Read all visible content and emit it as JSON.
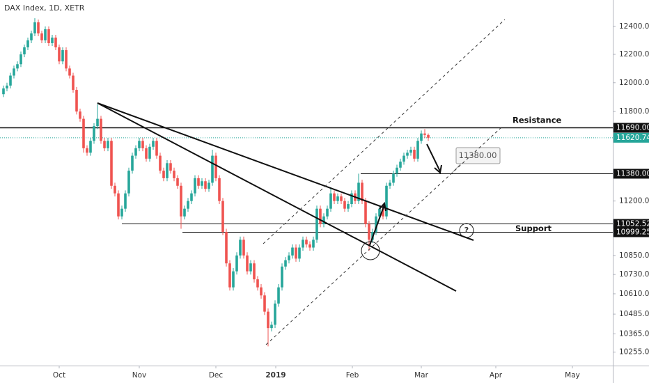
{
  "chart_data": {
    "type": "candlestick",
    "title": "DAX Index, 1D, XETR",
    "log_scale": true,
    "ylim": [
      10175,
      12593
    ],
    "yticks": [
      {
        "value": 12400,
        "label": "12400.00"
      },
      {
        "value": 12200,
        "label": "12200.00"
      },
      {
        "value": 12000,
        "label": "12000.00"
      },
      {
        "value": 11800,
        "label": "11800.00"
      },
      {
        "value": 11200,
        "label": "11200.00"
      },
      {
        "value": 10850,
        "label": "10850.00"
      },
      {
        "value": 10730,
        "label": "10730.00"
      },
      {
        "value": 10610,
        "label": "10610.00"
      },
      {
        "value": 10485,
        "label": "10485.00"
      },
      {
        "value": 10365,
        "label": "10365.00"
      },
      {
        "value": 10255,
        "label": "10255.00"
      }
    ],
    "xtick_labels": [
      "Oct",
      "Nov",
      "Dec",
      "2019",
      "Feb",
      "Mar",
      "Apr",
      "May"
    ],
    "up_color": "#26a69a",
    "down_color": "#ef5350",
    "open": [
      11920,
      11960,
      11980,
      12050,
      12100,
      12130,
      12200,
      12250,
      12300,
      12350,
      12430,
      12350,
      12300,
      12380,
      12280,
      12320,
      12250,
      12150,
      12230,
      12100,
      12050,
      11950,
      11800,
      11750,
      11550,
      11520,
      11600,
      11700,
      11750,
      11600,
      11550,
      11600,
      11300,
      11250,
      11100,
      11150,
      11250,
      11400,
      11500,
      11550,
      11600,
      11550,
      11480,
      11560,
      11600,
      11500,
      11400,
      11350,
      11450,
      11400,
      11350,
      11300,
      11100,
      11150,
      11200,
      11250,
      11350,
      11300,
      11330,
      11280,
      11320,
      11500,
      11350,
      11200,
      11000,
      10800,
      10650,
      10750,
      10850,
      10950,
      10850,
      10750,
      10800,
      10700,
      10650,
      10600,
      10500,
      10400,
      10420,
      10550,
      10650,
      10780,
      10820,
      10850,
      10900,
      10830,
      10900,
      10950,
      10920,
      10900,
      10950,
      11150,
      11050,
      11100,
      11150,
      11250,
      11200,
      11230,
      11200,
      11150,
      11180,
      11250,
      11200,
      11320,
      11200,
      11050,
      10950,
      11000,
      11100,
      11150,
      11100,
      11300,
      11320,
      11380,
      11420,
      11460,
      11500,
      11520,
      11540,
      11480,
      11600,
      11650,
      11640
    ],
    "high": [
      11980,
      12000,
      12070,
      12120,
      12150,
      12220,
      12270,
      12320,
      12370,
      12460,
      12450,
      12370,
      12400,
      12400,
      12340,
      12340,
      12270,
      12250,
      12250,
      12120,
      12070,
      11970,
      11820,
      11770,
      11570,
      11620,
      11720,
      11850,
      11770,
      11620,
      11620,
      11620,
      11320,
      11270,
      11170,
      11270,
      11420,
      11520,
      11570,
      11620,
      11620,
      11570,
      11580,
      11620,
      11620,
      11520,
      11420,
      11470,
      11470,
      11420,
      11370,
      11320,
      11170,
      11220,
      11270,
      11370,
      11370,
      11350,
      11350,
      11340,
      11540,
      11520,
      11370,
      11220,
      11020,
      10820,
      10770,
      10870,
      10970,
      10970,
      10870,
      10820,
      10820,
      10720,
      10670,
      10620,
      10520,
      10440,
      10570,
      10670,
      10800,
      10840,
      10870,
      10920,
      10920,
      10920,
      10970,
      10970,
      10940,
      10970,
      11170,
      11170,
      11120,
      11170,
      11290,
      11270,
      11250,
      11250,
      11220,
      11200,
      11270,
      11270,
      11380,
      11340,
      11220,
      11070,
      11020,
      11120,
      11170,
      11170,
      11320,
      11340,
      11400,
      11440,
      11480,
      11520,
      11540,
      11560,
      11560,
      11620,
      11670,
      11680,
      11650
    ],
    "low": [
      11900,
      11940,
      11960,
      12030,
      12080,
      12110,
      12180,
      12230,
      12280,
      12330,
      12330,
      12280,
      12280,
      12260,
      12260,
      12230,
      12130,
      12130,
      12080,
      12030,
      11930,
      11780,
      11730,
      11520,
      11500,
      11500,
      11580,
      11680,
      11580,
      11530,
      11530,
      11280,
      11230,
      11080,
      11080,
      11130,
      11230,
      11380,
      11480,
      11530,
      11530,
      11460,
      11460,
      11540,
      11480,
      11380,
      11330,
      11330,
      11380,
      11330,
      11280,
      11020,
      11080,
      11130,
      11180,
      11230,
      11280,
      11280,
      11260,
      11260,
      11300,
      11330,
      11180,
      10980,
      10780,
      10630,
      10630,
      10730,
      10830,
      10830,
      10730,
      10730,
      10680,
      10630,
      10580,
      10480,
      10290,
      10380,
      10400,
      10530,
      10630,
      10760,
      10800,
      10830,
      10810,
      10810,
      10880,
      10900,
      10880,
      10880,
      10930,
      11030,
      11030,
      11080,
      11130,
      11180,
      11180,
      11180,
      11130,
      11130,
      11160,
      11180,
      11180,
      11180,
      11030,
      10880,
      10930,
      10980,
      11080,
      11080,
      11080,
      11280,
      11300,
      11360,
      11400,
      11440,
      11480,
      11500,
      11460,
      11460,
      11580,
      11620,
      11600
    ],
    "close": [
      11960,
      11980,
      12050,
      12100,
      12130,
      12200,
      12250,
      12300,
      12350,
      12430,
      12350,
      12300,
      12380,
      12280,
      12320,
      12250,
      12150,
      12230,
      12100,
      12050,
      11950,
      11800,
      11750,
      11550,
      11520,
      11600,
      11700,
      11750,
      11600,
      11550,
      11600,
      11300,
      11250,
      11100,
      11150,
      11250,
      11400,
      11500,
      11550,
      11600,
      11550,
      11480,
      11560,
      11600,
      11500,
      11400,
      11350,
      11450,
      11400,
      11350,
      11300,
      11100,
      11150,
      11200,
      11250,
      11350,
      11300,
      11330,
      11280,
      11320,
      11500,
      11350,
      11200,
      11000,
      10800,
      10650,
      10750,
      10850,
      10950,
      10850,
      10750,
      10800,
      10700,
      10650,
      10600,
      10500,
      10400,
      10420,
      10550,
      10650,
      10780,
      10820,
      10850,
      10900,
      10830,
      10900,
      10950,
      10920,
      10900,
      10950,
      11150,
      11050,
      11100,
      11150,
      11250,
      11200,
      11230,
      11200,
      11150,
      11180,
      11250,
      11200,
      11320,
      11200,
      11050,
      10950,
      11000,
      11100,
      11150,
      11100,
      11300,
      11320,
      11380,
      11420,
      11460,
      11500,
      11520,
      11540,
      11480,
      11600,
      11650,
      11640,
      11620.74
    ],
    "levels": [
      {
        "value": 11690,
        "label": "11690.00"
      },
      {
        "value": 11380,
        "label": "11380.00"
      },
      {
        "value": 11052.52,
        "label": "11052.52"
      },
      {
        "value": 10999.25,
        "label": "10999.25"
      }
    ],
    "last_price": 11620.74,
    "annotations": {
      "resistance": "Resistance",
      "support": "Support",
      "question": "?",
      "callout": {
        "value": 11380,
        "label": "11380.00"
      }
    }
  }
}
